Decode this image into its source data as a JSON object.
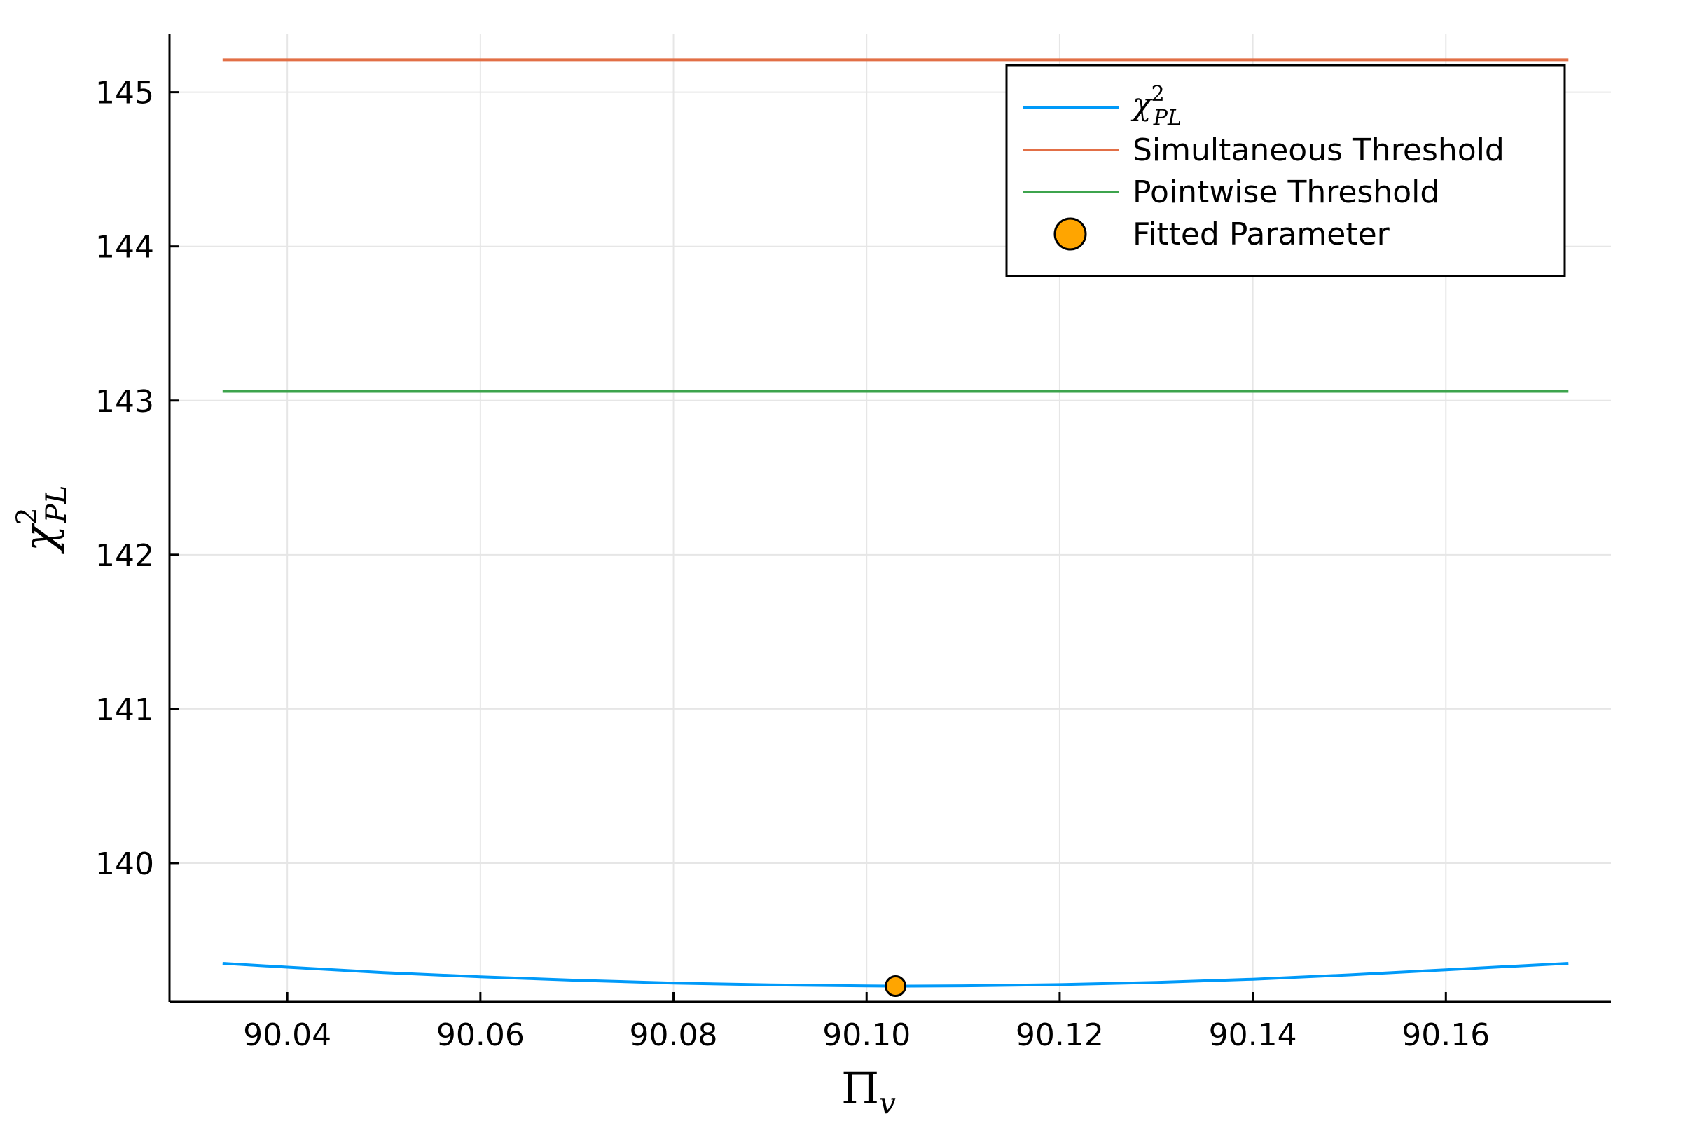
{
  "chart_data": {
    "type": "line",
    "xlabel": {
      "base": "Π",
      "sub": "v"
    },
    "ylabel": {
      "base": "χ",
      "sup": "2",
      "sub": "PL"
    },
    "xlim": [
      90.0278,
      90.1771
    ],
    "ylim": [
      139.1,
      145.38
    ],
    "xticks": [
      90.04,
      90.06,
      90.08,
      90.1,
      90.12,
      90.14,
      90.16
    ],
    "xtick_labels": [
      "90.04",
      "90.06",
      "90.08",
      "90.10",
      "90.12",
      "90.14",
      "90.16"
    ],
    "yticks": [
      140,
      141,
      142,
      143,
      144,
      145
    ],
    "ytick_labels": [
      "140",
      "141",
      "142",
      "143",
      "144",
      "145"
    ],
    "grid": true,
    "legend_position": "top-right",
    "series": [
      {
        "name": {
          "base": "χ",
          "sup": "2",
          "sub": "PL"
        },
        "kind": "line",
        "color": "#009af9",
        "x": [
          90.0333,
          90.04,
          90.05,
          90.06,
          90.07,
          90.08,
          90.09,
          90.1,
          90.103,
          90.11,
          90.12,
          90.13,
          90.14,
          90.15,
          90.16,
          90.1727
        ],
        "y": [
          139.35,
          139.325,
          139.29,
          139.262,
          139.24,
          139.222,
          139.21,
          139.203,
          139.202,
          139.204,
          139.212,
          139.226,
          139.247,
          139.275,
          139.308,
          139.35
        ]
      },
      {
        "name": "Simultaneous Threshold",
        "kind": "line",
        "color": "#e26f46",
        "x": [
          90.0333,
          90.1727
        ],
        "y": [
          145.21,
          145.21
        ]
      },
      {
        "name": "Pointwise Threshold",
        "kind": "line",
        "color": "#3da44d",
        "x": [
          90.0333,
          90.1727
        ],
        "y": [
          143.06,
          143.06
        ]
      },
      {
        "name": "Fitted Parameter",
        "kind": "scatter",
        "color": "#ffa500",
        "x": [
          90.103
        ],
        "y": [
          139.202
        ]
      }
    ]
  }
}
